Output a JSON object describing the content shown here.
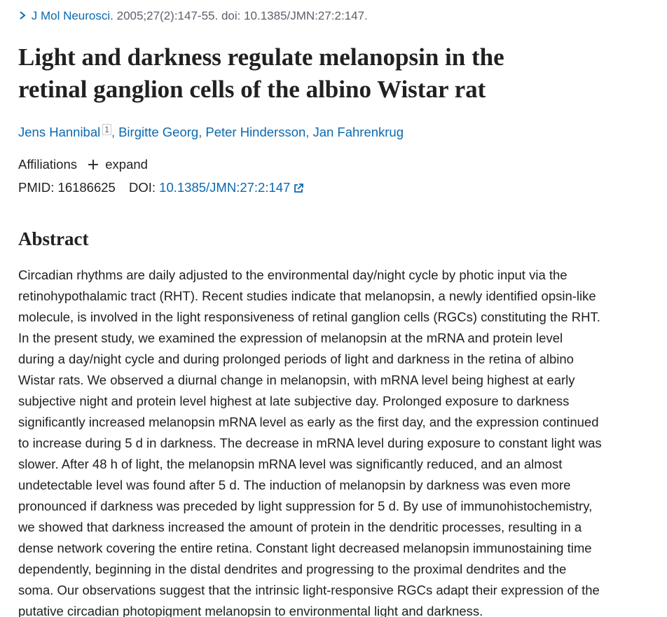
{
  "citation": {
    "journal": "J Mol Neurosci.",
    "details": "2005;27(2):147-55. doi: 10.1385/JMN:27:2:147."
  },
  "title_lines": [
    "Light and darkness regulate melanopsin in the",
    "retinal ganglion cells of the albino Wistar rat"
  ],
  "authors": [
    {
      "name": "Jens Hannibal",
      "affiliation": "1"
    },
    {
      "name": "Birgitte Georg"
    },
    {
      "name": "Peter Hindersson"
    },
    {
      "name": "Jan Fahrenkrug"
    }
  ],
  "author_separator": ",",
  "affiliations": {
    "label": "Affiliations",
    "toggle": "expand"
  },
  "identifiers": {
    "pmid_label": "PMID:",
    "pmid": "16186625",
    "doi_label": "DOI:",
    "doi": "10.1385/JMN:27:2:147"
  },
  "abstract": {
    "heading": "Abstract",
    "lines": [
      "Circadian rhythms are daily adjusted to the environmental day/night cycle by photic input via the",
      "retinohypothalamic tract (RHT). Recent studies indicate that melanopsin, a newly identified opsin-like",
      "molecule, is involved in the light responsiveness of retinal ganglion cells (RGCs) constituting the RHT.",
      "In the present study, we examined the expression of melanopsin at the mRNA and protein level",
      "during a day/night cycle and during prolonged periods of light and darkness in the retina of albino",
      "Wistar rats. We observed a diurnal change in melanopsin, with mRNA level being highest at early",
      "subjective night and protein level highest at late subjective day. Prolonged exposure to darkness",
      "significantly increased melanopsin mRNA level as early as the first day, and the expression continued",
      "to increase during 5 d in darkness. The decrease in mRNA level during exposure to constant light was",
      "slower. After 48 h of light, the melanopsin mRNA level was significantly reduced, and an almost",
      "undetectable level was found after 5 d. The induction of melanopsin by darkness was even more",
      "pronounced if darkness was preceded by light suppression for 5 d. By use of immunohistochemistry,",
      "we showed that darkness increased the amount of protein in the dendritic processes, resulting in a",
      "dense network covering the entire retina. Constant light decreased melanopsin immunostaining time",
      "dependently, beginning in the distal dendrites and progressing to the proximal dendrites and the",
      "soma. Our observations suggest that the intrinsic light-responsive RGCs adapt their expression of the",
      "putative circadian photopigment melanopsin to environmental light and darkness."
    ]
  }
}
